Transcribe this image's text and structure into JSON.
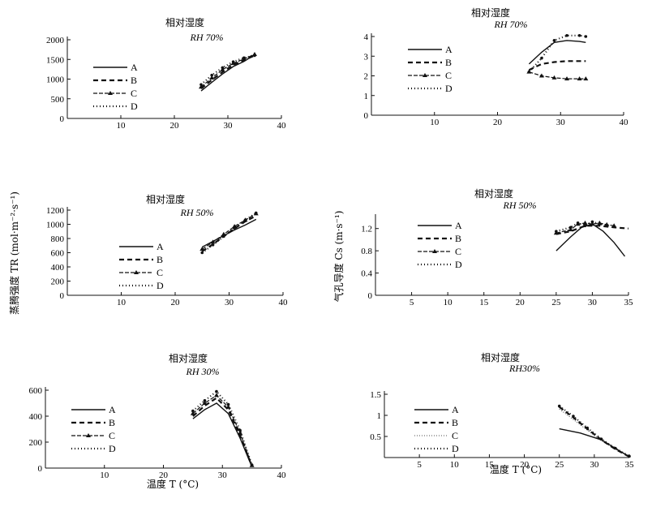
{
  "chart_data": [
    {
      "type": "line",
      "title": "相对湿度",
      "subtitle": "RH 70%",
      "ylabel": "",
      "xlabel": "",
      "xlim": [
        0,
        40
      ],
      "ylim": [
        0,
        2000
      ],
      "xticks": [
        10,
        20,
        30,
        40
      ],
      "yticks": [
        0,
        500,
        1000,
        1500,
        2000
      ],
      "legend": "left",
      "series": [
        {
          "name": "A",
          "style": "solid",
          "x": [
            25,
            27,
            29,
            31,
            33,
            35
          ],
          "y": [
            700,
            920,
            1130,
            1320,
            1450,
            1620
          ]
        },
        {
          "name": "B",
          "style": "dashed",
          "x": [
            25,
            27,
            29,
            31,
            33,
            35
          ],
          "y": [
            760,
            980,
            1180,
            1360,
            1480,
            1600
          ]
        },
        {
          "name": "C",
          "style": "triangle",
          "x": [
            25,
            27,
            29,
            31,
            33,
            35
          ],
          "y": [
            800,
            1030,
            1240,
            1400,
            1510,
            1630
          ]
        },
        {
          "name": "D",
          "style": "dot",
          "x": [
            25,
            27,
            29,
            31,
            33,
            35
          ],
          "y": [
            860,
            1100,
            1290,
            1440,
            1540,
            1600
          ]
        }
      ]
    },
    {
      "type": "line",
      "title": "相对湿度",
      "subtitle": "RH 70%",
      "ylabel": "",
      "xlabel": "",
      "xlim": [
        0,
        40
      ],
      "ylim": [
        0,
        4
      ],
      "xticks": [
        10,
        20,
        30,
        40
      ],
      "yticks": [
        0,
        1,
        2,
        3,
        4
      ],
      "legend": "left",
      "series": [
        {
          "name": "A",
          "style": "solid",
          "x": [
            25,
            27,
            29,
            31,
            33,
            34
          ],
          "y": [
            2.6,
            3.2,
            3.7,
            3.8,
            3.75,
            3.7
          ]
        },
        {
          "name": "B",
          "style": "dashed",
          "x": [
            25,
            27,
            29,
            31,
            33,
            34
          ],
          "y": [
            2.3,
            2.6,
            2.7,
            2.75,
            2.75,
            2.75
          ]
        },
        {
          "name": "C",
          "style": "triangle",
          "x": [
            25,
            27,
            29,
            31,
            33,
            34
          ],
          "y": [
            2.2,
            2.0,
            1.9,
            1.85,
            1.85,
            1.85
          ]
        },
        {
          "name": "D",
          "style": "dot",
          "x": [
            25,
            27,
            29,
            31,
            33,
            34
          ],
          "y": [
            2.2,
            2.9,
            3.8,
            4.05,
            4.05,
            4.0
          ]
        }
      ]
    },
    {
      "type": "line",
      "title": "相对湿度",
      "subtitle": "RH 50%",
      "ylabel": "蒸腾强度 TR (mol·m⁻²·s⁻¹)",
      "xlabel": "",
      "xlim": [
        0,
        40
      ],
      "ylim": [
        0,
        1200
      ],
      "xticks": [
        10,
        20,
        30,
        40
      ],
      "yticks": [
        0,
        200,
        400,
        600,
        800,
        1000,
        1200
      ],
      "legend": "left",
      "series": [
        {
          "name": "A",
          "style": "solid",
          "x": [
            25,
            27,
            29,
            31,
            33,
            35
          ],
          "y": [
            680,
            760,
            840,
            920,
            990,
            1070
          ]
        },
        {
          "name": "B",
          "style": "dashed",
          "x": [
            25,
            27,
            29,
            31,
            33,
            35
          ],
          "y": [
            620,
            720,
            830,
            940,
            1040,
            1120
          ]
        },
        {
          "name": "C",
          "style": "triangle",
          "x": [
            25,
            27,
            29,
            31,
            33,
            35
          ],
          "y": [
            650,
            750,
            860,
            970,
            1060,
            1150
          ]
        },
        {
          "name": "D",
          "style": "dot",
          "x": [
            25,
            27,
            29,
            31,
            33,
            35
          ],
          "y": [
            600,
            710,
            830,
            950,
            1060,
            1160
          ]
        }
      ]
    },
    {
      "type": "line",
      "title": "相对湿度",
      "subtitle": "RH 50%",
      "ylabel": "气孔导度 Cs (m·s⁻¹)",
      "xlabel": "",
      "xlim": [
        0,
        35
      ],
      "ylim": [
        0,
        1.4
      ],
      "xticks": [
        5,
        10,
        15,
        20,
        25,
        30,
        35
      ],
      "yticks": [
        0,
        0.4,
        0.8,
        1.2
      ],
      "legend": "left",
      "series": [
        {
          "name": "A",
          "style": "solid",
          "x": [
            25,
            27,
            28.5,
            30,
            31.5,
            33,
            34.5
          ],
          "y": [
            0.8,
            1.05,
            1.22,
            1.28,
            1.15,
            0.95,
            0.7
          ]
        },
        {
          "name": "B",
          "style": "dashed",
          "x": [
            25,
            27,
            29,
            31,
            33,
            35
          ],
          "y": [
            1.1,
            1.15,
            1.25,
            1.25,
            1.22,
            1.2
          ]
        },
        {
          "name": "C",
          "style": "triangle",
          "x": [
            25,
            27,
            28,
            29,
            30,
            31,
            32,
            33
          ],
          "y": [
            1.12,
            1.18,
            1.28,
            1.3,
            1.28,
            1.3,
            1.27,
            1.25
          ]
        },
        {
          "name": "D",
          "style": "dot",
          "x": [
            25,
            27,
            28,
            29,
            30,
            31,
            32
          ],
          "y": [
            1.15,
            1.22,
            1.3,
            1.25,
            1.32,
            1.28,
            1.25
          ]
        }
      ]
    },
    {
      "type": "line",
      "title": "相对湿度",
      "subtitle": "RH 30%",
      "ylabel": "",
      "xlabel": "温度 T (°C)",
      "xlim": [
        0,
        40
      ],
      "ylim": [
        0,
        600
      ],
      "xticks": [
        10,
        20,
        30,
        40
      ],
      "yticks": [
        0,
        200,
        400,
        600
      ],
      "legend": "left",
      "series": [
        {
          "name": "A",
          "style": "solid",
          "x": [
            25,
            27,
            29,
            31,
            33,
            35
          ],
          "y": [
            380,
            450,
            500,
            420,
            230,
            10
          ]
        },
        {
          "name": "B",
          "style": "dashed",
          "x": [
            25,
            27,
            29,
            31,
            33,
            35
          ],
          "y": [
            400,
            480,
            540,
            450,
            250,
            15
          ]
        },
        {
          "name": "C",
          "style": "triangle",
          "x": [
            25,
            27,
            29,
            31,
            33,
            35
          ],
          "y": [
            420,
            500,
            560,
            470,
            270,
            20
          ]
        },
        {
          "name": "D",
          "style": "dot",
          "x": [
            25,
            27,
            29,
            31,
            33,
            35
          ],
          "y": [
            440,
            520,
            590,
            490,
            290,
            25
          ]
        }
      ]
    },
    {
      "type": "line",
      "title": "相对湿度",
      "subtitle": "RH30%",
      "ylabel": "",
      "xlabel": "温度 T (°C)",
      "xlim": [
        0,
        35
      ],
      "ylim": [
        0,
        1.5
      ],
      "xticks": [
        5,
        10,
        15,
        20,
        25,
        30,
        35
      ],
      "yticks": [
        0.5,
        1.0,
        1.5
      ],
      "legend": "left",
      "series": [
        {
          "name": "A",
          "style": "solid",
          "x": [
            25,
            28,
            31,
            35
          ],
          "y": [
            0.68,
            0.58,
            0.42,
            0.02
          ]
        },
        {
          "name": "B",
          "style": "dashed",
          "x": [
            25,
            27,
            29,
            31,
            33,
            35
          ],
          "y": [
            1.2,
            0.95,
            0.68,
            0.42,
            0.2,
            0.02
          ]
        },
        {
          "name": "C",
          "style": "thin",
          "x": [
            25,
            27,
            29,
            31,
            33,
            35
          ],
          "y": [
            1.15,
            0.9,
            0.65,
            0.4,
            0.2,
            0.02
          ]
        },
        {
          "name": "D",
          "style": "dot",
          "x": [
            25,
            27,
            29,
            31,
            33,
            35
          ],
          "y": [
            1.22,
            0.98,
            0.7,
            0.44,
            0.22,
            0.03
          ]
        }
      ]
    }
  ]
}
